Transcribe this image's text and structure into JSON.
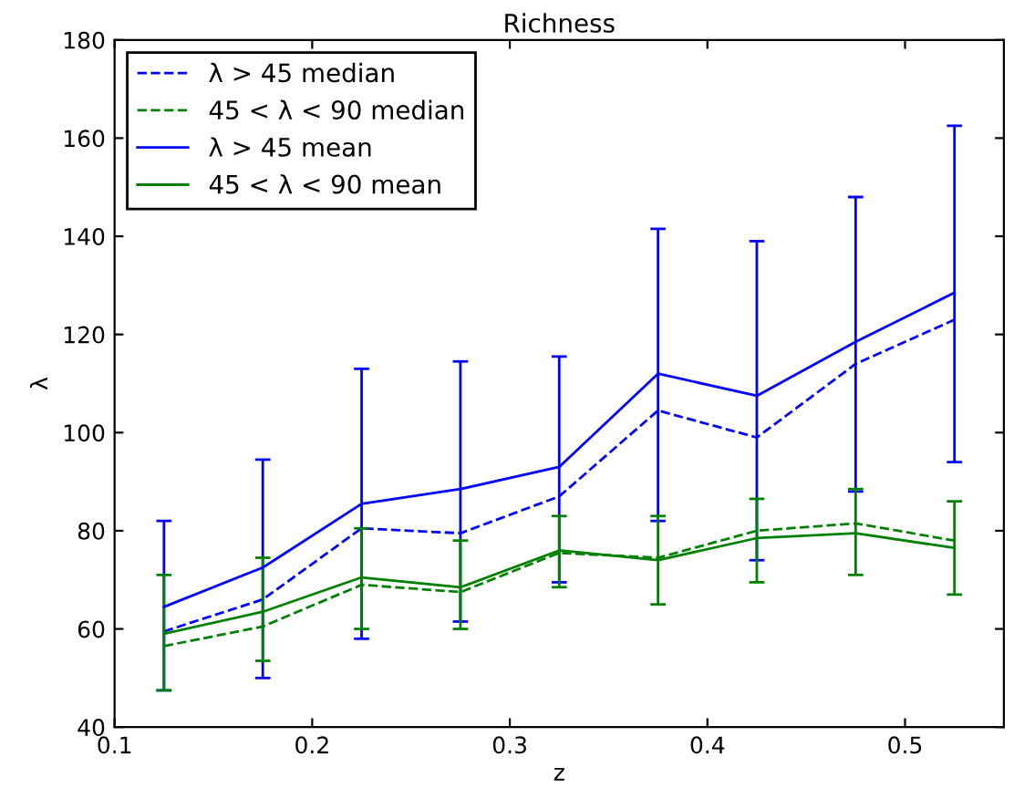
{
  "chart_data": {
    "type": "line",
    "title": "Richness",
    "xlabel": "z",
    "ylabel": "λ",
    "x": [
      0.125,
      0.175,
      0.225,
      0.275,
      0.325,
      0.375,
      0.425,
      0.475,
      0.525
    ],
    "xlim": [
      0.1,
      0.55
    ],
    "xticks": [
      0.1,
      0.2,
      0.3,
      0.4,
      0.5
    ],
    "ylim": [
      40,
      180
    ],
    "yticks": [
      40,
      60,
      80,
      100,
      120,
      140,
      160,
      180
    ],
    "grid": false,
    "legend": "top left",
    "marker": "none",
    "series": [
      {
        "name": "λ > 45 median",
        "color": "#0000ff",
        "line_style": "dashed",
        "values": [
          59.5,
          66,
          80.5,
          79.5,
          87,
          104.5,
          99,
          114,
          123
        ]
      },
      {
        "name": "45 < λ < 90 median",
        "color": "#008000",
        "line_style": "dashed",
        "values": [
          56.5,
          60.5,
          69,
          67.5,
          75.5,
          74.5,
          80,
          81.5,
          78
        ]
      },
      {
        "name": "λ > 45 mean",
        "color": "#0000ff",
        "line_style": "solid",
        "values": [
          64.5,
          72.5,
          85.5,
          88.5,
          93,
          112,
          107.5,
          118.5,
          128.5
        ],
        "errors": [
          [
            47.5,
            82
          ],
          [
            50,
            94.5
          ],
          [
            58,
            113
          ],
          [
            61.5,
            114.5
          ],
          [
            69.5,
            115.5
          ],
          [
            82,
            141.5
          ],
          [
            74,
            139
          ],
          [
            88,
            148
          ],
          [
            94,
            162.5
          ]
        ]
      },
      {
        "name": "45 < λ < 90 mean",
        "color": "#008000",
        "line_style": "solid",
        "values": [
          59,
          63.5,
          70.5,
          68.5,
          76,
          74,
          78.5,
          79.5,
          76.5
        ],
        "errors": [
          [
            47.5,
            71
          ],
          [
            53.5,
            74.5
          ],
          [
            60,
            80.5
          ],
          [
            60,
            78
          ],
          [
            68.5,
            83
          ],
          [
            65,
            83
          ],
          [
            69.5,
            86.5
          ],
          [
            71,
            88.5
          ],
          [
            67,
            86
          ]
        ]
      }
    ]
  }
}
